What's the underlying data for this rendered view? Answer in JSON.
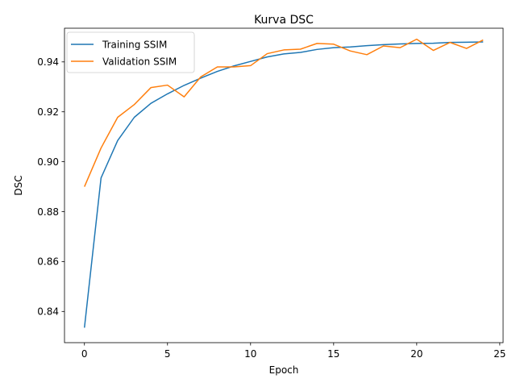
{
  "chart_data": {
    "type": "line",
    "title": "Kurva DSC",
    "xlabel": "Epoch",
    "ylabel": "DSC",
    "xlim": [
      -1.2,
      25.2
    ],
    "ylim": [
      0.8275,
      0.9535
    ],
    "xticks": [
      0,
      5,
      10,
      15,
      20,
      25
    ],
    "yticks": [
      0.84,
      0.86,
      0.88,
      0.9,
      0.92,
      0.94
    ],
    "ytick_labels": [
      "0.84",
      "0.86",
      "0.88",
      "0.90",
      "0.92",
      "0.94"
    ],
    "grid": false,
    "legend_position": "upper-left",
    "x": [
      0,
      1,
      2,
      3,
      4,
      5,
      6,
      7,
      8,
      9,
      10,
      11,
      12,
      13,
      14,
      15,
      16,
      17,
      18,
      19,
      20,
      21,
      22,
      23,
      24
    ],
    "series": [
      {
        "name": "Training SSIM",
        "color": "#1f77b4",
        "values": [
          0.8335,
          0.8935,
          0.9085,
          0.9178,
          0.9234,
          0.9272,
          0.9306,
          0.9335,
          0.9362,
          0.9384,
          0.9402,
          0.942,
          0.9432,
          0.9438,
          0.945,
          0.9457,
          0.946,
          0.9465,
          0.9469,
          0.9472,
          0.9474,
          0.9475,
          0.9478,
          0.9479,
          0.948
        ]
      },
      {
        "name": "Validation SSIM",
        "color": "#ff7f0e",
        "values": [
          0.89,
          0.9055,
          0.9178,
          0.9229,
          0.9297,
          0.9307,
          0.926,
          0.934,
          0.938,
          0.938,
          0.9385,
          0.9433,
          0.9448,
          0.9451,
          0.9474,
          0.9471,
          0.9444,
          0.9429,
          0.9464,
          0.9457,
          0.9491,
          0.9446,
          0.9478,
          0.9454,
          0.9488
        ]
      }
    ]
  }
}
